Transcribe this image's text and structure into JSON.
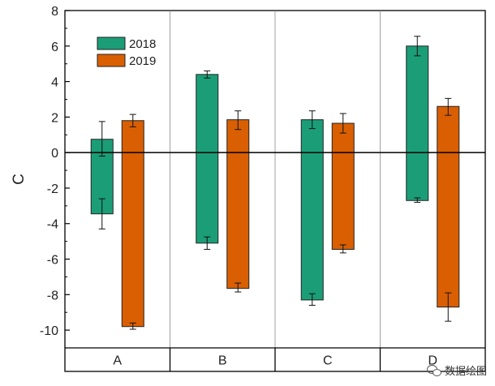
{
  "chart_data": {
    "type": "bar",
    "title": "",
    "xlabel": "",
    "ylabel": "C",
    "ylim": [
      -11,
      8
    ],
    "yticks": [
      8,
      6,
      4,
      2,
      0,
      -2,
      -4,
      -6,
      -8,
      -10
    ],
    "categories": [
      "A",
      "B",
      "C",
      "D"
    ],
    "series": [
      {
        "name": "2018",
        "color": "#1b9e77",
        "bars": [
          {
            "category": "A",
            "high": 0.75,
            "high_err": [
              -0.2,
              1.75
            ],
            "low": -3.45,
            "low_err": [
              -4.3,
              -2.6
            ]
          },
          {
            "category": "B",
            "high": 4.4,
            "high_err": [
              4.2,
              4.6
            ],
            "low": -5.1,
            "low_err": [
              -5.45,
              -4.75
            ]
          },
          {
            "category": "C",
            "high": 1.85,
            "high_err": [
              1.35,
              2.35
            ],
            "low": -8.3,
            "low_err": [
              -8.6,
              -7.95
            ]
          },
          {
            "category": "D",
            "high": 6.0,
            "high_err": [
              5.45,
              6.55
            ],
            "low": -2.7,
            "low_err": [
              -2.8,
              -2.55
            ]
          }
        ]
      },
      {
        "name": "2019",
        "color": "#d95f02",
        "bars": [
          {
            "category": "A",
            "high": 1.8,
            "high_err": [
              1.45,
              2.15
            ],
            "low": -9.8,
            "low_err": [
              -9.95,
              -9.6
            ]
          },
          {
            "category": "B",
            "high": 1.85,
            "high_err": [
              1.3,
              2.35
            ],
            "low": -7.65,
            "low_err": [
              -7.85,
              -7.35
            ]
          },
          {
            "category": "C",
            "high": 1.65,
            "high_err": [
              1.1,
              2.2
            ],
            "low": -5.45,
            "low_err": [
              -5.65,
              -5.2
            ]
          },
          {
            "category": "D",
            "high": 2.6,
            "high_err": [
              2.1,
              3.05
            ],
            "low": -8.7,
            "low_err": [
              -9.5,
              -7.9
            ]
          }
        ]
      }
    ],
    "legend": {
      "position": "top-left",
      "entries": [
        "2018",
        "2019"
      ]
    },
    "zero_line": true,
    "grid": false
  },
  "watermark": {
    "text": "数据绘图",
    "icon": "wechat-icon"
  }
}
